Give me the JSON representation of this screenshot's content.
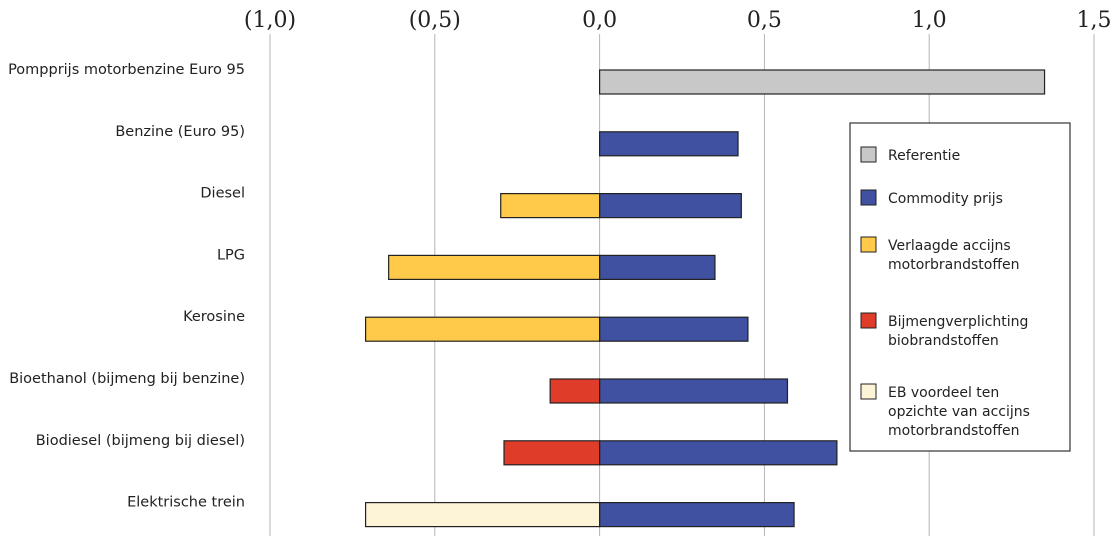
{
  "chart_data": {
    "type": "bar",
    "orientation": "horizontal",
    "stacked": true,
    "title": "",
    "xlabel": "",
    "ylabel": "",
    "xlim": [
      -1.0,
      1.5
    ],
    "x_ticks": [
      -1.0,
      -0.5,
      0.0,
      0.5,
      1.0,
      1.5
    ],
    "x_tick_labels": [
      "(1,0)",
      "(0,5)",
      "0,0",
      "0,5",
      "1,0",
      "1,5"
    ],
    "grid": "vertical",
    "legend_position": "right",
    "categories": [
      "Pompprijs motorbenzine Euro 95",
      "Benzine (Euro 95)",
      "Diesel",
      "LPG",
      "Kerosine",
      "Bioethanol (bijmeng bij benzine)",
      "Biodiesel (bijmeng bij diesel)",
      "Elektrische trein"
    ],
    "series": [
      {
        "name": "Referentie",
        "color": "#c8c8c8",
        "values": [
          1.35,
          null,
          null,
          null,
          null,
          null,
          null,
          null
        ]
      },
      {
        "name": "Commodity prijs",
        "color": "#3f51a0",
        "values": [
          null,
          0.42,
          0.43,
          0.35,
          0.45,
          0.57,
          0.72,
          0.59
        ]
      },
      {
        "name": "Verlaagde accijns motorbrandstoffen",
        "color": "#ffc94a",
        "values": [
          null,
          null,
          -0.3,
          -0.64,
          -0.71,
          null,
          null,
          null
        ]
      },
      {
        "name": "Bijmengverplichting biobrandstoffen",
        "color": "#e03c2a",
        "values": [
          null,
          null,
          null,
          null,
          null,
          -0.15,
          -0.29,
          null
        ]
      },
      {
        "name": "EB voordeel ten opzichte van accijns motorbrandstoffen",
        "color": "#fdf3d6",
        "values": [
          null,
          null,
          null,
          null,
          null,
          null,
          null,
          -0.71
        ]
      }
    ],
    "legend_lines": [
      [
        "Referentie"
      ],
      [
        "Commodity prijs"
      ],
      [
        "Verlaagde accijns",
        "motorbrandstoffen"
      ],
      [
        "Bijmengverplichting",
        "biobrandstoffen"
      ],
      [
        "EB voordeel ten",
        "opzichte van accijns",
        "motorbrandstoffen"
      ]
    ]
  }
}
